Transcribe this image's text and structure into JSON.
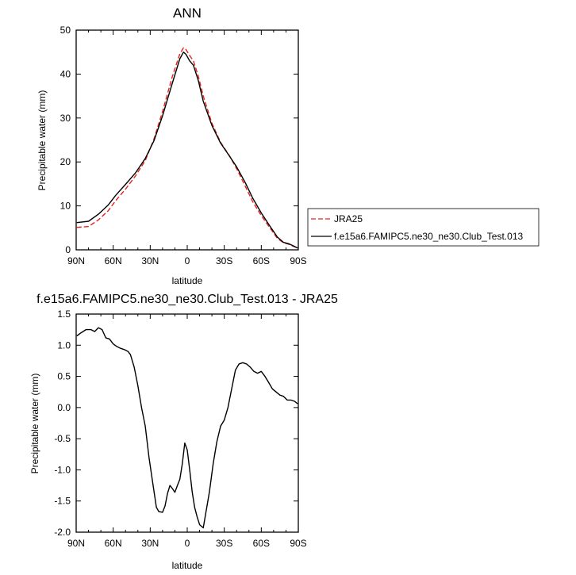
{
  "colors": {
    "reference": "#e8201a",
    "model": "#000000",
    "axis": "#000000",
    "legend_border": "#000000"
  },
  "chart_data": [
    {
      "type": "line",
      "title": "ANN",
      "xlabel": "latitude",
      "ylabel": "Precipitable water (mm)",
      "xlim": [
        90,
        -90
      ],
      "ylim": [
        0,
        50
      ],
      "xticks": [
        {
          "value": 90,
          "label": "90N"
        },
        {
          "value": 60,
          "label": "60N"
        },
        {
          "value": 30,
          "label": "30N"
        },
        {
          "value": 0,
          "label": "0"
        },
        {
          "value": -30,
          "label": "30S"
        },
        {
          "value": -60,
          "label": "60S"
        },
        {
          "value": -90,
          "label": "90S"
        }
      ],
      "yticks": [
        {
          "value": 0,
          "label": "0"
        },
        {
          "value": 10,
          "label": "10"
        },
        {
          "value": 20,
          "label": "20"
        },
        {
          "value": 30,
          "label": "30"
        },
        {
          "value": 40,
          "label": "40"
        },
        {
          "value": 50,
          "label": "50"
        }
      ],
      "legend_position": "right",
      "series": [
        {
          "name": "JRA25",
          "style": "dashed",
          "color": "#e8201a",
          "x": [
            89.5,
            80,
            72,
            64,
            58,
            50,
            42,
            34,
            27,
            20,
            12,
            6,
            3,
            1,
            -2,
            -5,
            -9,
            -13,
            -20,
            -27,
            -34,
            -40,
            -47,
            -53,
            -60,
            -67,
            -73,
            -78,
            -82,
            -86,
            -89.5
          ],
          "y": [
            5.1,
            5.3,
            6.8,
            8.9,
            11.2,
            13.8,
            16.8,
            20.3,
            25.2,
            31.5,
            39.5,
            44.6,
            46.0,
            45.6,
            44.2,
            43.0,
            39.5,
            35.0,
            28.8,
            24.5,
            21.5,
            18.5,
            14.5,
            11.0,
            7.8,
            5.0,
            2.6,
            1.6,
            1.3,
            0.8,
            0.4
          ]
        },
        {
          "name": "f.e15a6.FAMIPC5.ne30_ne30.Club_Test.013",
          "style": "solid",
          "color": "#000000",
          "x": [
            89.5,
            80,
            72,
            64,
            58,
            50,
            42,
            34,
            27,
            20,
            12,
            6,
            3,
            1,
            -2,
            -5,
            -9,
            -13,
            -20,
            -27,
            -34,
            -40,
            -47,
            -53,
            -60,
            -67,
            -73,
            -78,
            -82,
            -86,
            -89.5
          ],
          "y": [
            6.2,
            6.5,
            8.1,
            10.2,
            12.4,
            14.9,
            17.5,
            20.8,
            24.8,
            30.5,
            38.0,
            43.5,
            45.0,
            44.5,
            43.0,
            42.0,
            38.5,
            33.8,
            28.3,
            24.3,
            21.4,
            18.9,
            15.3,
            11.8,
            8.4,
            5.4,
            2.9,
            1.7,
            1.4,
            0.9,
            0.4
          ]
        }
      ]
    },
    {
      "type": "line",
      "title": "f.e15a6.FAMIPC5.ne30_ne30.Club_Test.013 - JRA25",
      "xlabel": "latitude",
      "ylabel": "Precipitable water (mm)",
      "xlim": [
        90,
        -90
      ],
      "ylim": [
        -2.0,
        1.5
      ],
      "xticks": [
        {
          "value": 90,
          "label": "90N"
        },
        {
          "value": 60,
          "label": "60N"
        },
        {
          "value": 30,
          "label": "30N"
        },
        {
          "value": 0,
          "label": "0"
        },
        {
          "value": -30,
          "label": "30S"
        },
        {
          "value": -60,
          "label": "60S"
        },
        {
          "value": -90,
          "label": "90S"
        }
      ],
      "yticks": [
        {
          "value": -2.0,
          "label": "-2.0"
        },
        {
          "value": -1.5,
          "label": "-1.5"
        },
        {
          "value": -1.0,
          "label": "-1.0"
        },
        {
          "value": -0.5,
          "label": "-0.5"
        },
        {
          "value": 0.0,
          "label": "0.0"
        },
        {
          "value": 0.5,
          "label": "0.5"
        },
        {
          "value": 1.0,
          "label": "1.0"
        },
        {
          "value": 1.5,
          "label": "1.5"
        }
      ],
      "series": [
        {
          "style": "solid",
          "color": "#000000",
          "x": [
            89.5,
            86,
            82,
            78,
            75,
            72,
            69,
            66,
            63,
            60,
            57,
            54,
            51,
            48,
            46,
            43,
            40,
            37,
            34,
            31,
            28,
            25,
            23,
            20,
            18,
            16,
            14,
            12,
            10,
            8,
            6,
            4,
            2,
            0,
            -2,
            -4,
            -6,
            -8,
            -10,
            -13,
            -15,
            -18,
            -21,
            -24,
            -27,
            -30,
            -33,
            -36,
            -39,
            -42,
            -45,
            -48,
            -51,
            -54,
            -57,
            -60,
            -63,
            -66,
            -69,
            -72,
            -75,
            -78,
            -81,
            -84,
            -87,
            -89.5
          ],
          "y": [
            1.15,
            1.2,
            1.25,
            1.25,
            1.22,
            1.28,
            1.25,
            1.12,
            1.1,
            1.02,
            0.98,
            0.95,
            0.93,
            0.9,
            0.85,
            0.65,
            0.35,
            0.0,
            -0.3,
            -0.8,
            -1.2,
            -1.6,
            -1.67,
            -1.68,
            -1.58,
            -1.38,
            -1.25,
            -1.3,
            -1.36,
            -1.25,
            -1.15,
            -0.9,
            -0.57,
            -0.68,
            -1.0,
            -1.35,
            -1.6,
            -1.75,
            -1.88,
            -1.93,
            -1.7,
            -1.35,
            -0.9,
            -0.55,
            -0.3,
            -0.2,
            0.0,
            0.3,
            0.6,
            0.7,
            0.72,
            0.7,
            0.65,
            0.58,
            0.55,
            0.58,
            0.5,
            0.4,
            0.3,
            0.25,
            0.2,
            0.18,
            0.12,
            0.12,
            0.1,
            0.06
          ]
        }
      ]
    }
  ]
}
